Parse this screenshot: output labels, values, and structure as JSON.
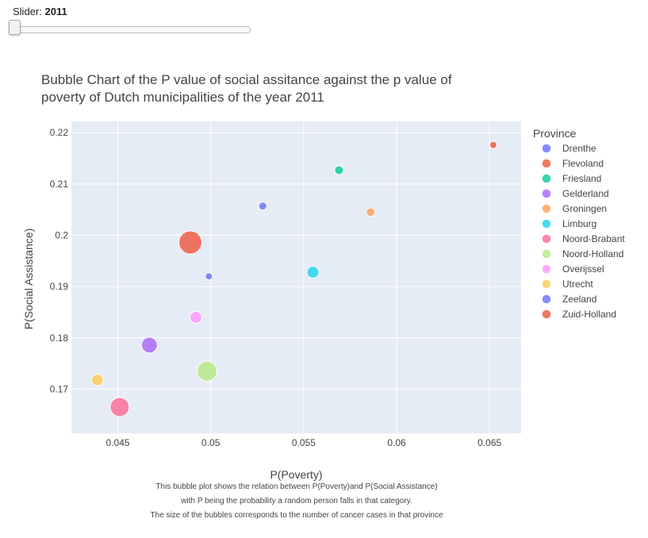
{
  "slider": {
    "label": "Slider:",
    "value": "2011"
  },
  "chart_data": {
    "type": "scatter",
    "title_lines": [
      "Bubble Chart of the P value of social assitance against the p value of",
      "poverty of Dutch municipalities of the year 2011"
    ],
    "xlabel": "P(Poverty)",
    "ylabel": "P(Social Assistance)",
    "xlim": [
      0.0425,
      0.0667
    ],
    "ylim": [
      0.1614,
      0.2222
    ],
    "xticks": [
      0.045,
      0.05,
      0.055,
      0.06,
      0.065
    ],
    "xtick_labels": [
      "0.045",
      "0.05",
      "0.055",
      "0.06",
      "0.065"
    ],
    "yticks": [
      0.17,
      0.18,
      0.19,
      0.2,
      0.21,
      0.22
    ],
    "ytick_labels": [
      "0.17",
      "0.18",
      "0.19",
      "0.2",
      "0.21",
      "0.22"
    ],
    "grid": true,
    "legend_title": "Province",
    "legend_position": "right",
    "caption_lines": [
      "This bubble plot shows the relation between P(Poverty)and P(Social Assistance)",
      "with P being the probability a random person falls in that category.",
      "The size of the bubbles corresponds to the number of cancer cases in that province"
    ],
    "series": [
      {
        "name": "Drenthe",
        "color": "#636efa",
        "x": 0.0528,
        "y": 0.2057,
        "size": 4
      },
      {
        "name": "Flevoland",
        "color": "#EF553B",
        "x": 0.0652,
        "y": 0.2176,
        "size": 3
      },
      {
        "name": "Friesland",
        "color": "#00cc96",
        "x": 0.0569,
        "y": 0.2127,
        "size": 5
      },
      {
        "name": "Gelderland",
        "color": "#ab63fa",
        "x": 0.0467,
        "y": 0.1786,
        "size": 14
      },
      {
        "name": "Groningen",
        "color": "#FFA15A",
        "x": 0.0586,
        "y": 0.2045,
        "size": 5
      },
      {
        "name": "Limburg",
        "color": "#19d3f3",
        "x": 0.0555,
        "y": 0.1928,
        "size": 9
      },
      {
        "name": "Noord-Brabant",
        "color": "#FF6692",
        "x": 0.0451,
        "y": 0.1665,
        "size": 18
      },
      {
        "name": "Noord-Holland",
        "color": "#B6E880",
        "x": 0.0498,
        "y": 0.1735,
        "size": 19
      },
      {
        "name": "Overijssel",
        "color": "#FF97FF",
        "x": 0.0492,
        "y": 0.184,
        "size": 9
      },
      {
        "name": "Utrecht",
        "color": "#FECB52",
        "x": 0.0439,
        "y": 0.1718,
        "size": 9
      },
      {
        "name": "Zeeland",
        "color": "#636efa",
        "x": 0.0499,
        "y": 0.192,
        "size": 3
      },
      {
        "name": "Zuid-Holland",
        "color": "#EF553B",
        "x": 0.0489,
        "y": 0.1986,
        "size": 23
      }
    ]
  }
}
